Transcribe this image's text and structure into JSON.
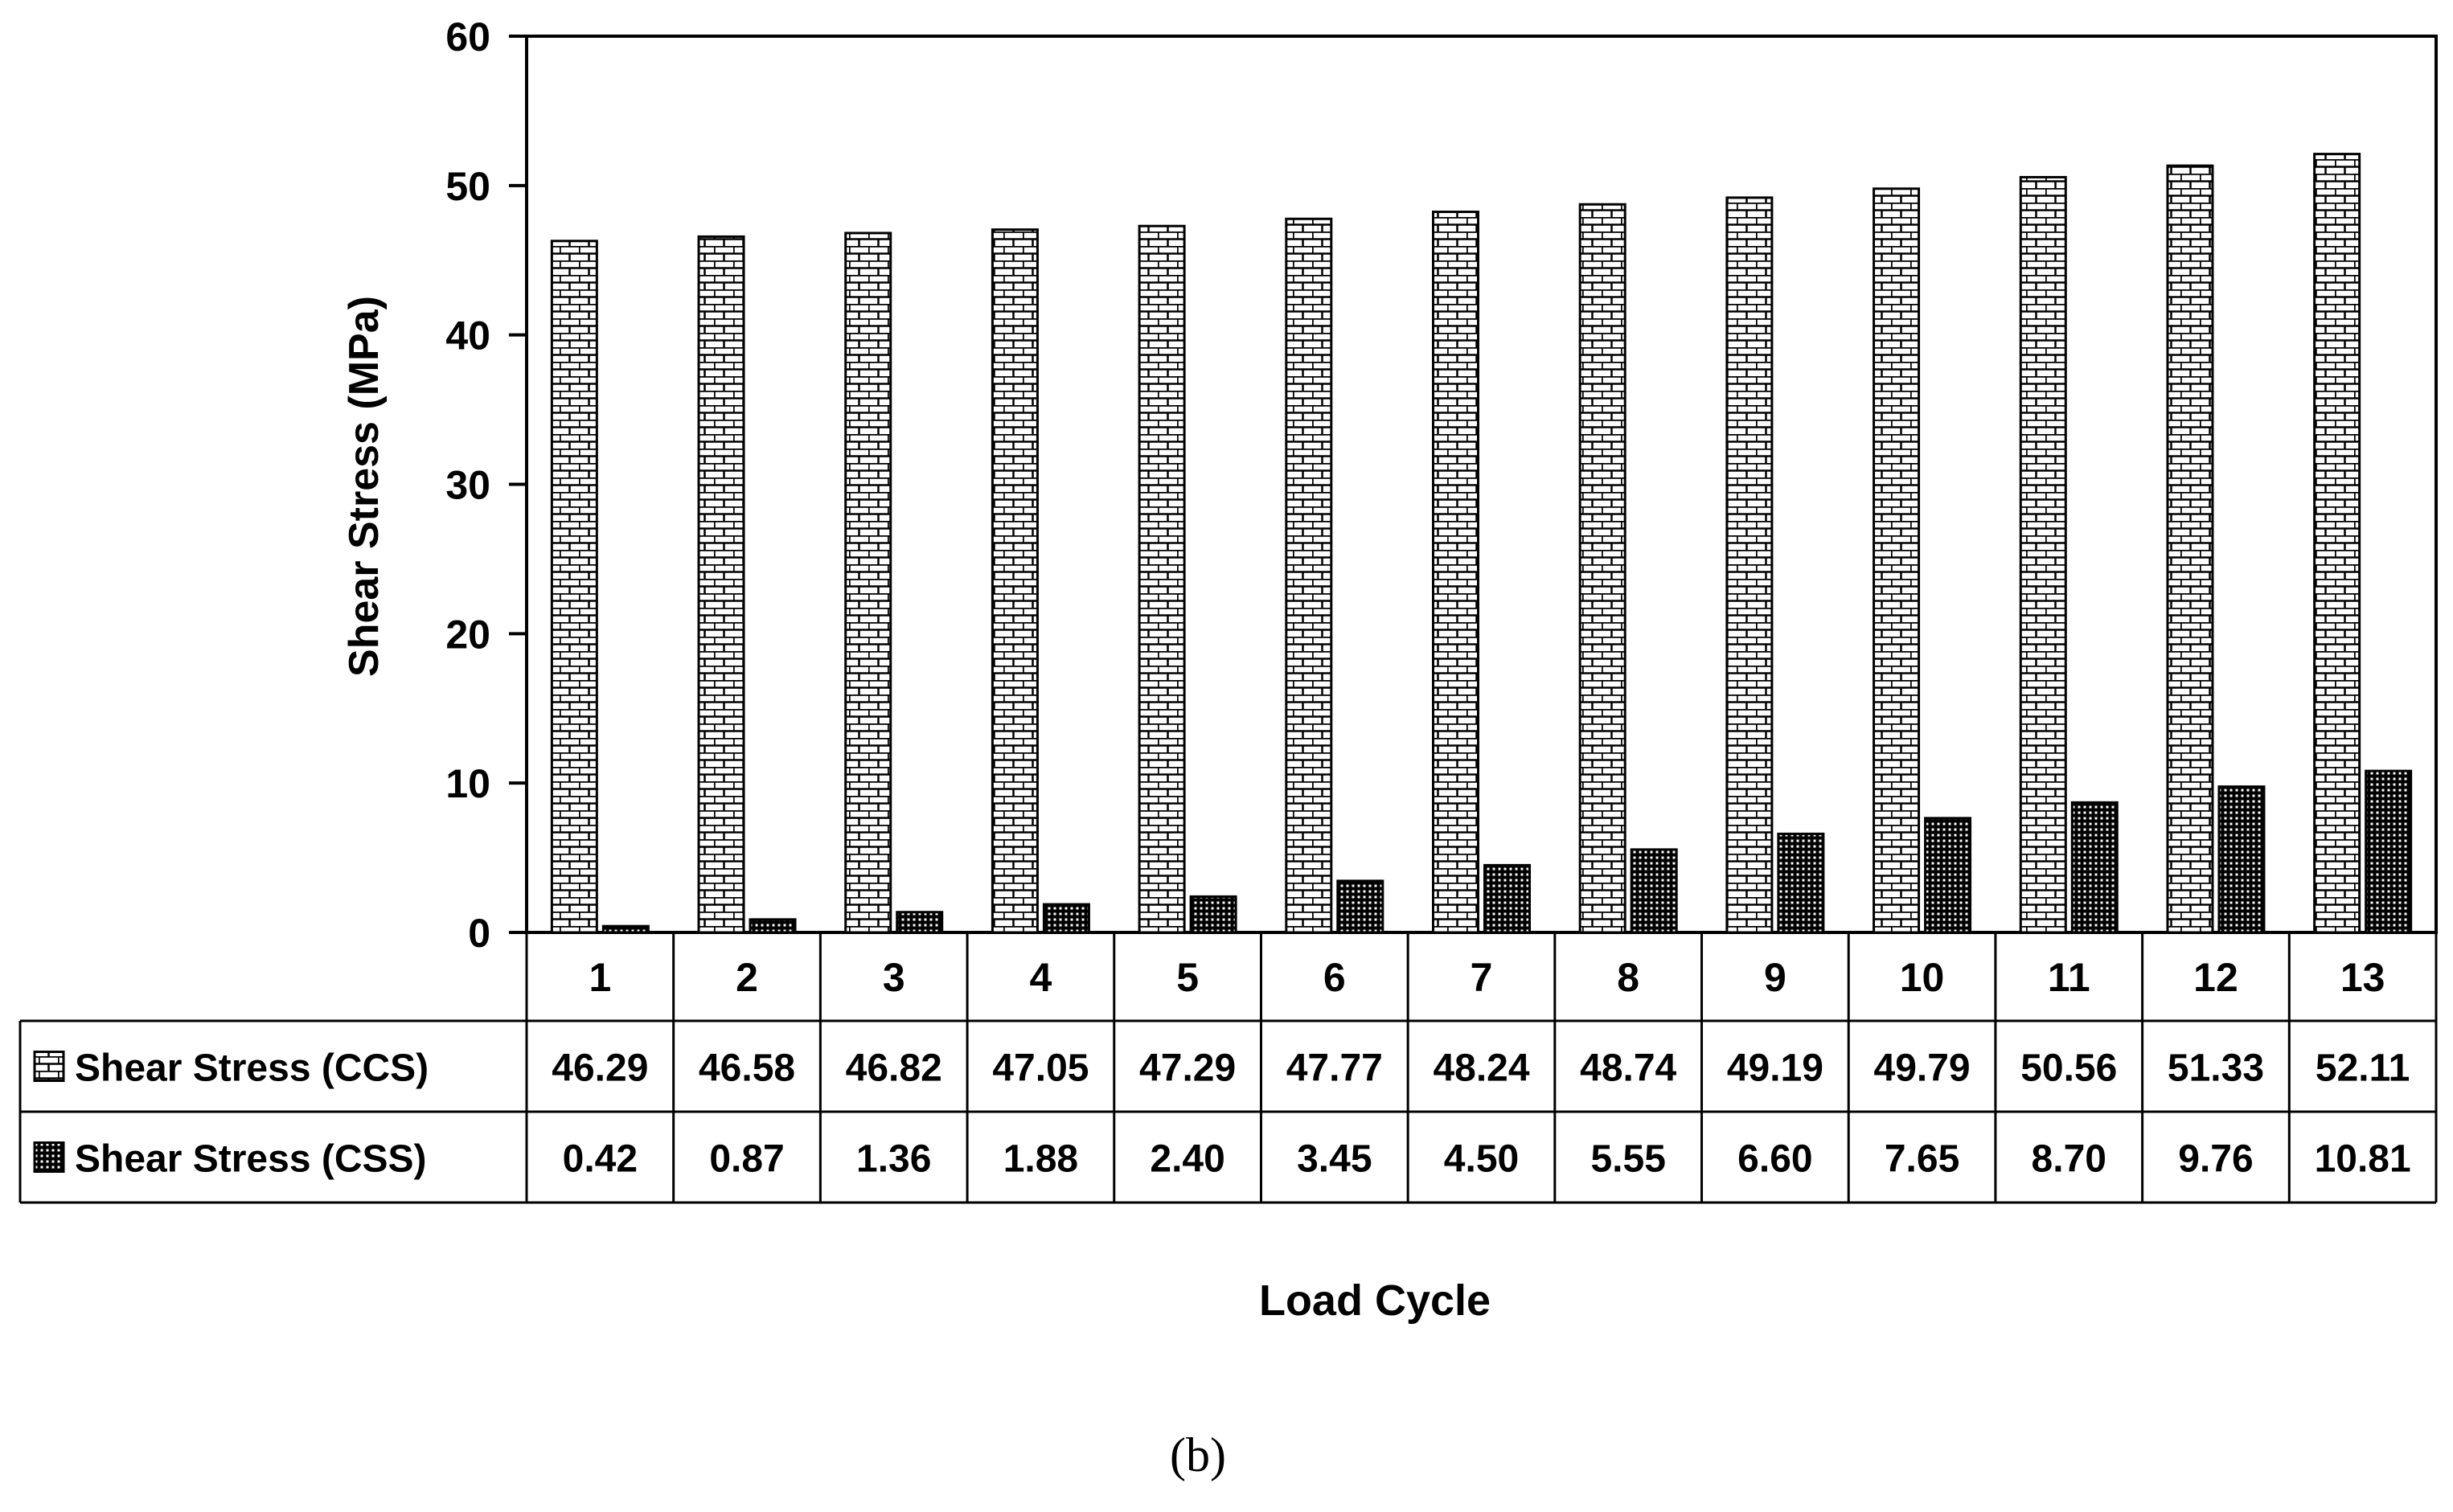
{
  "chart_data": {
    "type": "bar",
    "title": "",
    "xlabel": "Load Cycle",
    "ylabel": "Shear Stress (MPa)",
    "ylim": [
      0,
      60
    ],
    "yticks": [
      0,
      10,
      20,
      30,
      40,
      50,
      60
    ],
    "grid": false,
    "legend": "data-table-left",
    "categories": [
      "1",
      "2",
      "3",
      "4",
      "5",
      "6",
      "7",
      "8",
      "9",
      "10",
      "11",
      "12",
      "13"
    ],
    "series": [
      {
        "name": "Shear Stress (CCS)",
        "pattern": "brick",
        "values": [
          46.29,
          46.58,
          46.82,
          47.05,
          47.29,
          47.77,
          48.24,
          48.74,
          49.19,
          49.79,
          50.56,
          51.33,
          52.11
        ],
        "labels": [
          "46.29",
          "46.58",
          "46.82",
          "47.05",
          "47.29",
          "47.77",
          "48.24",
          "48.74",
          "49.19",
          "49.79",
          "50.56",
          "51.33",
          "52.11"
        ]
      },
      {
        "name": "Shear Stress (CSS)",
        "pattern": "dots",
        "values": [
          0.42,
          0.87,
          1.36,
          1.88,
          2.4,
          3.45,
          4.5,
          5.55,
          6.6,
          7.65,
          8.7,
          9.76,
          10.81
        ],
        "labels": [
          "0.42",
          "0.87",
          "1.36",
          "1.88",
          "2.40",
          "3.45",
          "4.50",
          "5.55",
          "6.60",
          "7.65",
          "8.70",
          "9.76",
          "10.81"
        ]
      }
    ]
  },
  "caption": {
    "text": "(b)"
  }
}
